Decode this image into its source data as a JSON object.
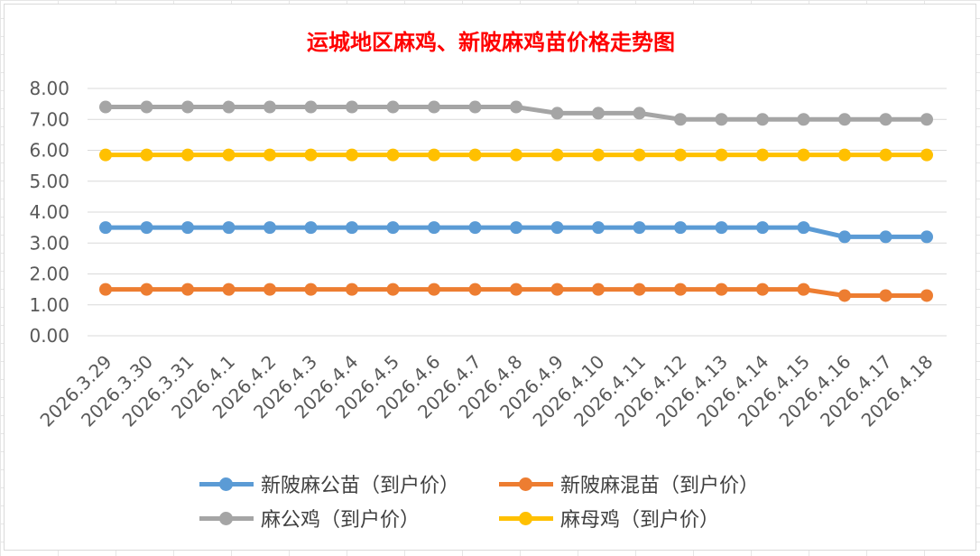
{
  "chart_data": {
    "type": "line",
    "title": "运城地区麻鸡、新陂麻鸡苗价格走势图",
    "xlabel": "",
    "ylabel": "",
    "ylim": [
      0,
      8
    ],
    "ytick_step": 1,
    "grid": true,
    "legend_position": "bottom",
    "categories": [
      "2026.3.29",
      "2026.3.30",
      "2026.3.31",
      "2026.4.1",
      "2026.4.2",
      "2026.4.3",
      "2026.4.4",
      "2026.4.5",
      "2026.4.6",
      "2026.4.7",
      "2026.4.8",
      "2026.4.9",
      "2026.4.10",
      "2026.4.11",
      "2026.4.12",
      "2026.4.13",
      "2026.4.14",
      "2026.4.15",
      "2026.4.16",
      "2026.4.17",
      "2026.4.18"
    ],
    "y_tick_labels": [
      "0.00",
      "1.00",
      "2.00",
      "3.00",
      "4.00",
      "5.00",
      "6.00",
      "7.00",
      "8.00"
    ],
    "series": [
      {
        "name": "新陂麻公苗（到户价）",
        "color": "#5b9bd5",
        "values": [
          3.5,
          3.5,
          3.5,
          3.5,
          3.5,
          3.5,
          3.5,
          3.5,
          3.5,
          3.5,
          3.5,
          3.5,
          3.5,
          3.5,
          3.5,
          3.5,
          3.5,
          3.5,
          3.2,
          3.2,
          3.2
        ]
      },
      {
        "name": "新陂麻混苗（到户价）",
        "color": "#ed7d31",
        "values": [
          1.5,
          1.5,
          1.5,
          1.5,
          1.5,
          1.5,
          1.5,
          1.5,
          1.5,
          1.5,
          1.5,
          1.5,
          1.5,
          1.5,
          1.5,
          1.5,
          1.5,
          1.5,
          1.3,
          1.3,
          1.3
        ]
      },
      {
        "name": "麻公鸡（到户价）",
        "color": "#a5a5a5",
        "values": [
          7.4,
          7.4,
          7.4,
          7.4,
          7.4,
          7.4,
          7.4,
          7.4,
          7.4,
          7.4,
          7.4,
          7.2,
          7.2,
          7.2,
          7.0,
          7.0,
          7.0,
          7.0,
          7.0,
          7.0,
          7.0
        ]
      },
      {
        "name": "麻母鸡（到户价）",
        "color": "#ffc000",
        "values": [
          5.85,
          5.85,
          5.85,
          5.85,
          5.85,
          5.85,
          5.85,
          5.85,
          5.85,
          5.85,
          5.85,
          5.85,
          5.85,
          5.85,
          5.85,
          5.85,
          5.85,
          5.85,
          5.85,
          5.85,
          5.85
        ]
      }
    ],
    "colors": {
      "title": "#ff0000",
      "grid": "#d9d9d9",
      "axis_text": "#595959",
      "legend_text": "#404040"
    }
  }
}
